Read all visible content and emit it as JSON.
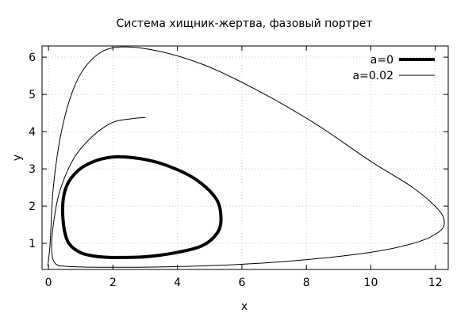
{
  "chart_data": {
    "type": "line",
    "title": "Система хищник-жертва, фазовый портрет",
    "xlabel": "x",
    "ylabel": "y",
    "xlim": [
      -0.2,
      12.4
    ],
    "ylim": [
      0.3,
      6.3
    ],
    "xticks": [
      0,
      2,
      4,
      6,
      8,
      10,
      12
    ],
    "yticks": [
      1,
      2,
      3,
      4,
      5,
      6
    ],
    "xtick_labels": [
      "0",
      "2",
      "4",
      "6",
      "8",
      "10",
      "12"
    ],
    "ytick_labels": [
      "1",
      "2",
      "3",
      "4",
      "5",
      "6"
    ],
    "grid": true,
    "legend_position": "top-right",
    "series": [
      {
        "name": "a=0",
        "color": "#000000",
        "line_weight": "thick",
        "x": [
          2.0,
          3.0,
          4.0,
          4.8,
          5.25,
          5.35,
          5.2,
          4.6,
          3.8,
          3.0,
          2.0,
          1.2,
          0.7,
          0.48,
          0.45,
          0.6,
          1.0,
          1.5,
          2.0
        ],
        "y": [
          0.62,
          0.64,
          0.76,
          0.95,
          1.3,
          1.7,
          2.2,
          2.7,
          3.05,
          3.25,
          3.32,
          3.12,
          2.75,
          2.3,
          1.65,
          1.05,
          0.75,
          0.65,
          0.62
        ]
      },
      {
        "name": "a=0.02",
        "color": "#000000",
        "line_weight": "thin",
        "x": [
          -0.02,
          0.05,
          0.15,
          0.4,
          0.8,
          1.3,
          2.0,
          3.2,
          4.8,
          6.5,
          8.3,
          10.0,
          11.3,
          12.1,
          12.28,
          12.1,
          11.5,
          10.4,
          9.0,
          7.4,
          5.8,
          4.2,
          2.8,
          1.5,
          0.6,
          0.22,
          0.1,
          0.15,
          0.35,
          0.8,
          1.4,
          2.0,
          2.6,
          3.0
        ],
        "y": [
          0.4,
          1.0,
          2.5,
          4.0,
          5.2,
          5.9,
          6.25,
          6.2,
          5.8,
          5.1,
          4.2,
          3.2,
          2.5,
          1.9,
          1.55,
          1.3,
          1.05,
          0.82,
          0.65,
          0.52,
          0.43,
          0.38,
          0.36,
          0.36,
          0.38,
          0.45,
          0.8,
          1.5,
          2.4,
          3.3,
          3.9,
          4.25,
          4.35,
          4.38
        ]
      }
    ]
  }
}
